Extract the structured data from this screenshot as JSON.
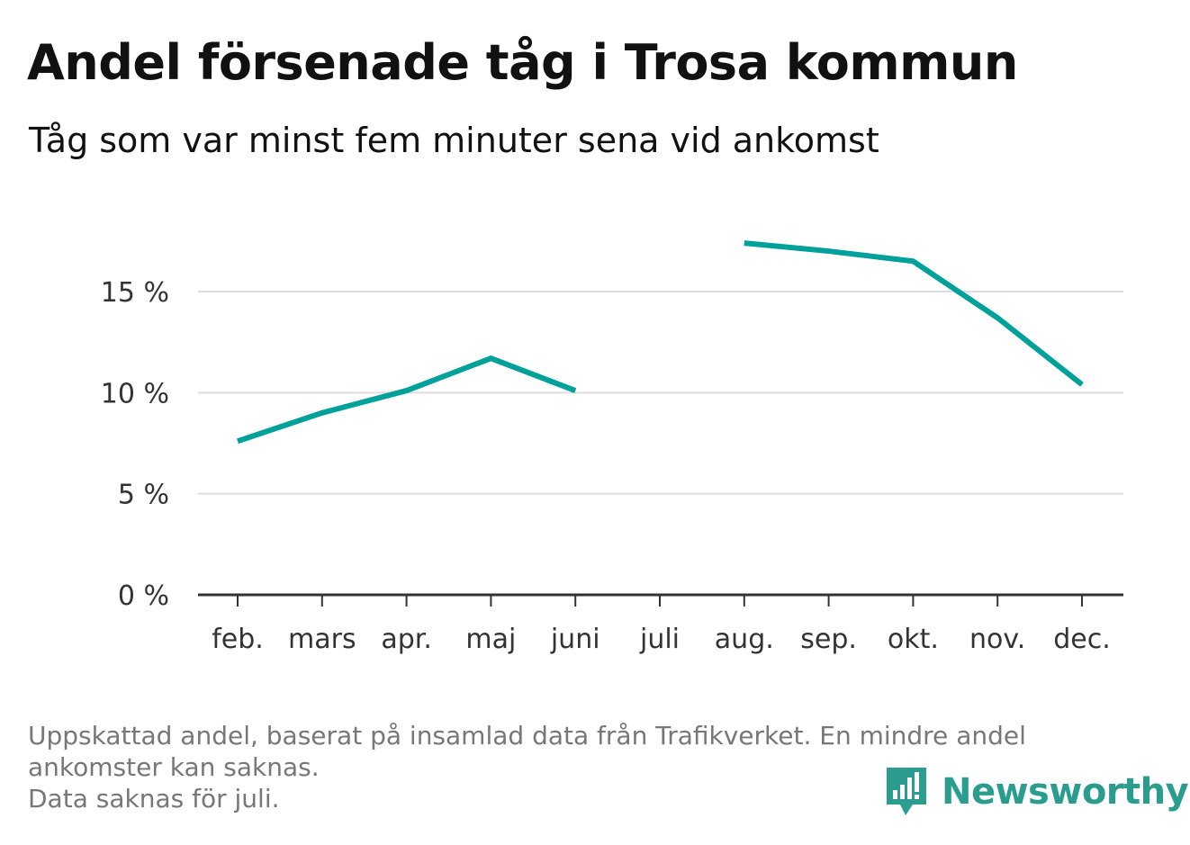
{
  "header": {
    "title": "Andel försenade tåg i Trosa kommun",
    "subtitle": "Tåg som var minst fem minuter sena vid ankomst"
  },
  "chart_data": {
    "type": "line",
    "title": "Andel försenade tåg i Trosa kommun",
    "subtitle": "Tåg som var minst fem minuter sena vid ankomst",
    "xlabel": "",
    "ylabel": "",
    "categories": [
      "feb.",
      "mars",
      "apr.",
      "maj",
      "juni",
      "juli",
      "aug.",
      "sep.",
      "okt.",
      "nov.",
      "dec."
    ],
    "series": [
      {
        "values": [
          7.6,
          9.0,
          10.1,
          11.7,
          10.1,
          null,
          17.4,
          17.0,
          16.5,
          13.7,
          10.4
        ],
        "color": "#00a19a"
      }
    ],
    "ylim": [
      0,
      18
    ],
    "yticks": [
      0,
      5,
      10,
      15
    ],
    "ytick_labels": [
      "0 %",
      "5 %",
      "10 %",
      "15 %"
    ],
    "grid": true,
    "legend": "none"
  },
  "footer": {
    "note_line1": "Uppskattad andel, baserat på insamlad data från Trafikverket. En mindre andel",
    "note_line2": "ankomster kan saknas.",
    "note_line3": "Data saknas för juli.",
    "brand": "Newsworthy",
    "brand_icon": "newsworthy-logo-icon",
    "brand_color": "#2a9d8f"
  }
}
